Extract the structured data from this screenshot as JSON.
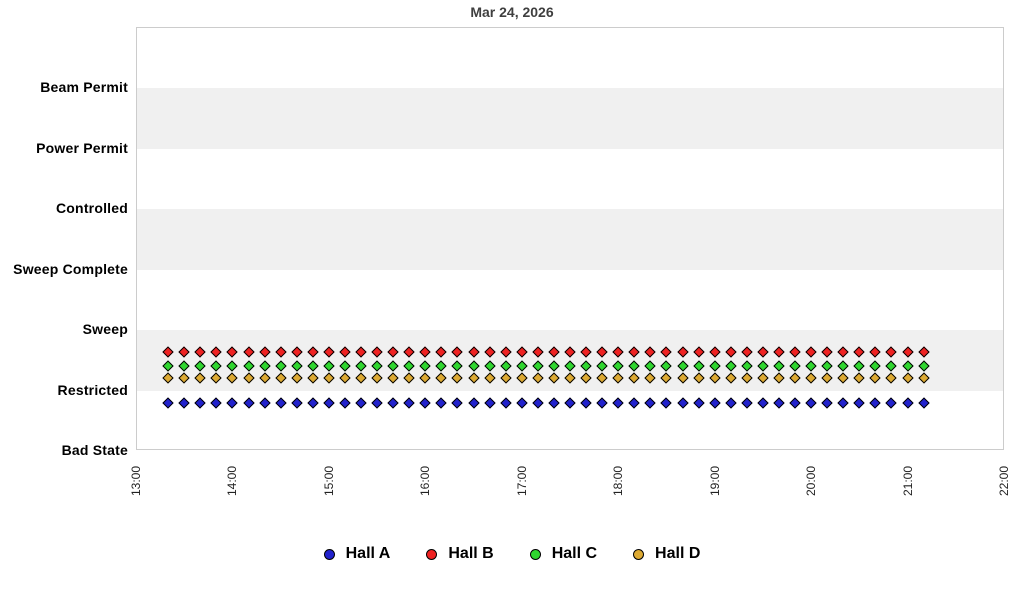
{
  "title": "Mar 24, 2026",
  "chart_data": {
    "type": "scatter",
    "title": "Mar 24, 2026",
    "x_axis": {
      "tick_labels": [
        "13:00",
        "14:00",
        "15:00",
        "16:00",
        "17:00",
        "18:00",
        "19:00",
        "20:00",
        "21:00",
        "22:00"
      ],
      "range": [
        "13:00",
        "22:00"
      ],
      "tick_label_rotation_deg": -90
    },
    "y_axis": {
      "categories_top_to_bottom": [
        "Beam Permit",
        "Power Permit",
        "Controlled",
        "Sweep Complete",
        "Sweep",
        "Restricted",
        "Bad State"
      ]
    },
    "grid": "alternating horizontal bands",
    "band_color": "#f0f0f0",
    "plot_border_color": "#cccccc",
    "times": [
      "13:20",
      "13:30",
      "13:40",
      "13:50",
      "14:00",
      "14:10",
      "14:20",
      "14:30",
      "14:40",
      "14:50",
      "15:00",
      "15:10",
      "15:20",
      "15:30",
      "15:40",
      "15:50",
      "16:00",
      "16:10",
      "16:20",
      "16:30",
      "16:40",
      "16:50",
      "17:00",
      "17:10",
      "17:20",
      "17:30",
      "17:40",
      "17:50",
      "18:00",
      "18:10",
      "18:20",
      "18:30",
      "18:40",
      "18:50",
      "19:00",
      "19:10",
      "19:20",
      "19:30",
      "19:40",
      "19:50",
      "20:00",
      "20:10",
      "20:20",
      "20:30",
      "20:40",
      "20:50",
      "21:00",
      "21:10"
    ],
    "series": [
      {
        "name": "Hall A",
        "color": "#2222cc",
        "marker": "diamond",
        "state_all_points": "Restricted"
      },
      {
        "name": "Hall B",
        "color": "#ee2222",
        "marker": "diamond",
        "state_all_points": "Restricted"
      },
      {
        "name": "Hall C",
        "color": "#2fd62f",
        "marker": "diamond",
        "state_all_points": "Restricted"
      },
      {
        "name": "Hall D",
        "color": "#ddaa33",
        "marker": "diamond",
        "state_all_points": "Restricted"
      }
    ],
    "legend": {
      "position": "bottom",
      "entries": [
        "Hall A",
        "Hall B",
        "Hall C",
        "Hall D"
      ]
    }
  }
}
